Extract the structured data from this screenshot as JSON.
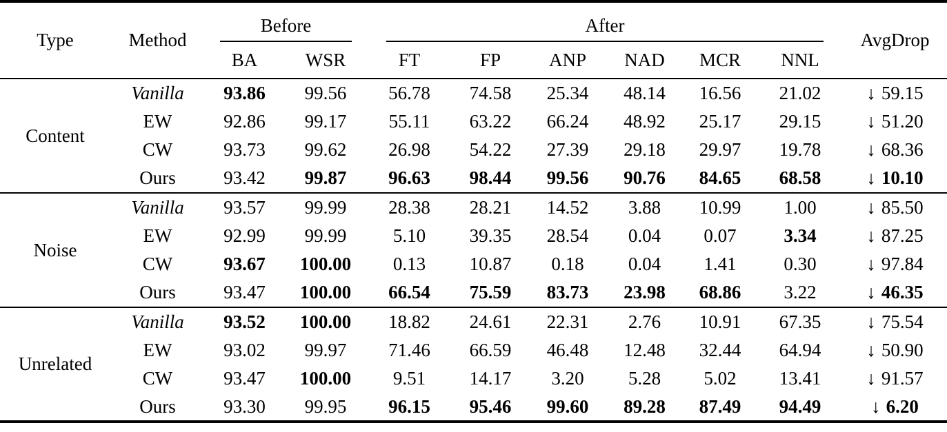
{
  "header": {
    "type": "Type",
    "method": "Method",
    "groups": [
      {
        "label": "Before",
        "cols": [
          "BA",
          "WSR"
        ]
      },
      {
        "label": "After",
        "cols": [
          "FT",
          "FP",
          "ANP",
          "NAD",
          "MCR",
          "NNL"
        ]
      }
    ],
    "avgdrop": "AvgDrop"
  },
  "arrow_icon": "↓",
  "blocks": [
    {
      "type": "Content",
      "rows": [
        {
          "method": "Vanilla",
          "italic": true,
          "cells": [
            {
              "v": "93.86",
              "b": true
            },
            {
              "v": "99.56",
              "b": false
            },
            {
              "v": "56.78",
              "b": false
            },
            {
              "v": "74.58",
              "b": false
            },
            {
              "v": "25.34",
              "b": false
            },
            {
              "v": "48.14",
              "b": false
            },
            {
              "v": "16.56",
              "b": false
            },
            {
              "v": "21.02",
              "b": false
            }
          ],
          "avgdrop": {
            "v": "59.15",
            "b": false
          }
        },
        {
          "method": "EW",
          "italic": false,
          "cells": [
            {
              "v": "92.86",
              "b": false
            },
            {
              "v": "99.17",
              "b": false
            },
            {
              "v": "55.11",
              "b": false
            },
            {
              "v": "63.22",
              "b": false
            },
            {
              "v": "66.24",
              "b": false
            },
            {
              "v": "48.92",
              "b": false
            },
            {
              "v": "25.17",
              "b": false
            },
            {
              "v": "29.15",
              "b": false
            }
          ],
          "avgdrop": {
            "v": "51.20",
            "b": false
          }
        },
        {
          "method": "CW",
          "italic": false,
          "cells": [
            {
              "v": "93.73",
              "b": false
            },
            {
              "v": "99.62",
              "b": false
            },
            {
              "v": "26.98",
              "b": false
            },
            {
              "v": "54.22",
              "b": false
            },
            {
              "v": "27.39",
              "b": false
            },
            {
              "v": "29.18",
              "b": false
            },
            {
              "v": "29.97",
              "b": false
            },
            {
              "v": "19.78",
              "b": false
            }
          ],
          "avgdrop": {
            "v": "68.36",
            "b": false
          }
        },
        {
          "method": "Ours",
          "italic": false,
          "cells": [
            {
              "v": "93.42",
              "b": false
            },
            {
              "v": "99.87",
              "b": true
            },
            {
              "v": "96.63",
              "b": true
            },
            {
              "v": "98.44",
              "b": true
            },
            {
              "v": "99.56",
              "b": true
            },
            {
              "v": "90.76",
              "b": true
            },
            {
              "v": "84.65",
              "b": true
            },
            {
              "v": "68.58",
              "b": true
            }
          ],
          "avgdrop": {
            "v": "10.10",
            "b": true
          }
        }
      ]
    },
    {
      "type": "Noise",
      "rows": [
        {
          "method": "Vanilla",
          "italic": true,
          "cells": [
            {
              "v": "93.57",
              "b": false
            },
            {
              "v": "99.99",
              "b": false
            },
            {
              "v": "28.38",
              "b": false
            },
            {
              "v": "28.21",
              "b": false
            },
            {
              "v": "14.52",
              "b": false
            },
            {
              "v": "3.88",
              "b": false
            },
            {
              "v": "10.99",
              "b": false
            },
            {
              "v": "1.00",
              "b": false
            }
          ],
          "avgdrop": {
            "v": "85.50",
            "b": false
          }
        },
        {
          "method": "EW",
          "italic": false,
          "cells": [
            {
              "v": "92.99",
              "b": false
            },
            {
              "v": "99.99",
              "b": false
            },
            {
              "v": "5.10",
              "b": false
            },
            {
              "v": "39.35",
              "b": false
            },
            {
              "v": "28.54",
              "b": false
            },
            {
              "v": "0.04",
              "b": false
            },
            {
              "v": "0.07",
              "b": false
            },
            {
              "v": "3.34",
              "b": true
            }
          ],
          "avgdrop": {
            "v": "87.25",
            "b": false
          }
        },
        {
          "method": "CW",
          "italic": false,
          "cells": [
            {
              "v": "93.67",
              "b": true
            },
            {
              "v": "100.00",
              "b": true
            },
            {
              "v": "0.13",
              "b": false
            },
            {
              "v": "10.87",
              "b": false
            },
            {
              "v": "0.18",
              "b": false
            },
            {
              "v": "0.04",
              "b": false
            },
            {
              "v": "1.41",
              "b": false
            },
            {
              "v": "0.30",
              "b": false
            }
          ],
          "avgdrop": {
            "v": "97.84",
            "b": false
          }
        },
        {
          "method": "Ours",
          "italic": false,
          "cells": [
            {
              "v": "93.47",
              "b": false
            },
            {
              "v": "100.00",
              "b": true
            },
            {
              "v": "66.54",
              "b": true
            },
            {
              "v": "75.59",
              "b": true
            },
            {
              "v": "83.73",
              "b": true
            },
            {
              "v": "23.98",
              "b": true
            },
            {
              "v": "68.86",
              "b": true
            },
            {
              "v": "3.22",
              "b": false
            }
          ],
          "avgdrop": {
            "v": "46.35",
            "b": true
          }
        }
      ]
    },
    {
      "type": "Unrelated",
      "rows": [
        {
          "method": "Vanilla",
          "italic": true,
          "cells": [
            {
              "v": "93.52",
              "b": true
            },
            {
              "v": "100.00",
              "b": true
            },
            {
              "v": "18.82",
              "b": false
            },
            {
              "v": "24.61",
              "b": false
            },
            {
              "v": "22.31",
              "b": false
            },
            {
              "v": "2.76",
              "b": false
            },
            {
              "v": "10.91",
              "b": false
            },
            {
              "v": "67.35",
              "b": false
            }
          ],
          "avgdrop": {
            "v": "75.54",
            "b": false
          }
        },
        {
          "method": "EW",
          "italic": false,
          "cells": [
            {
              "v": "93.02",
              "b": false
            },
            {
              "v": "99.97",
              "b": false
            },
            {
              "v": "71.46",
              "b": false
            },
            {
              "v": "66.59",
              "b": false
            },
            {
              "v": "46.48",
              "b": false
            },
            {
              "v": "12.48",
              "b": false
            },
            {
              "v": "32.44",
              "b": false
            },
            {
              "v": "64.94",
              "b": false
            }
          ],
          "avgdrop": {
            "v": "50.90",
            "b": false
          }
        },
        {
          "method": "CW",
          "italic": false,
          "cells": [
            {
              "v": "93.47",
              "b": false
            },
            {
              "v": "100.00",
              "b": true
            },
            {
              "v": "9.51",
              "b": false
            },
            {
              "v": "14.17",
              "b": false
            },
            {
              "v": "3.20",
              "b": false
            },
            {
              "v": "5.28",
              "b": false
            },
            {
              "v": "5.02",
              "b": false
            },
            {
              "v": "13.41",
              "b": false
            }
          ],
          "avgdrop": {
            "v": "91.57",
            "b": false
          }
        },
        {
          "method": "Ours",
          "italic": false,
          "cells": [
            {
              "v": "93.30",
              "b": false
            },
            {
              "v": "99.95",
              "b": false
            },
            {
              "v": "96.15",
              "b": true
            },
            {
              "v": "95.46",
              "b": true
            },
            {
              "v": "99.60",
              "b": true
            },
            {
              "v": "89.28",
              "b": true
            },
            {
              "v": "87.49",
              "b": true
            },
            {
              "v": "94.49",
              "b": true
            }
          ],
          "avgdrop": {
            "v": "6.20",
            "b": true
          }
        }
      ]
    }
  ]
}
